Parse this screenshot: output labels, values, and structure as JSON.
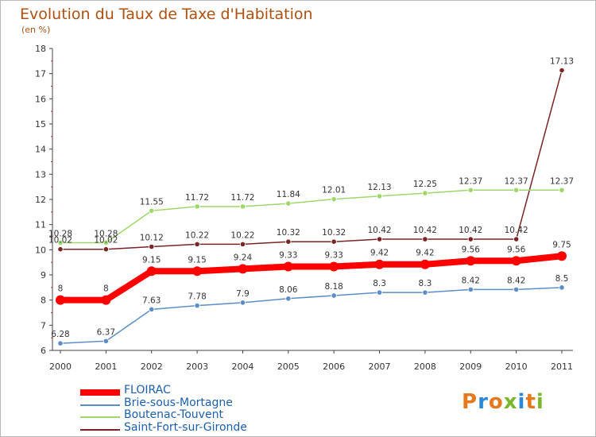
{
  "title": "Evolution du Taux de Taxe d'Habitation",
  "unit_label": "(en %)",
  "logo_text": "Proxiti",
  "logo_colors": [
    "#e8781e",
    "#2a8ad8",
    "#e8781e",
    "#7ab82a",
    "#2a8ad8",
    "#e8781e",
    "#7ab82a"
  ],
  "chart_data": {
    "type": "line",
    "x": [
      "2000",
      "2001",
      "2002",
      "2003",
      "2004",
      "2005",
      "2006",
      "2007",
      "2008",
      "2009",
      "2010",
      "2011"
    ],
    "ylim": [
      6,
      18
    ],
    "yticks": [
      "6",
      "7",
      "8",
      "9",
      "10",
      "11",
      "12",
      "13",
      "14",
      "15",
      "16",
      "17",
      "18"
    ],
    "grid": false,
    "legend_position": "bottom-left",
    "series": [
      {
        "name": "FLOIRAC",
        "color": "#ff0000",
        "values": [
          8,
          8,
          9.15,
          9.15,
          9.24,
          9.33,
          9.33,
          9.42,
          9.42,
          9.56,
          9.56,
          9.75
        ],
        "labels": [
          "8",
          "8",
          "9.15",
          "9.15",
          "9.24",
          "9.33",
          "9.33",
          "9.42",
          "9.42",
          "9.56",
          "9.56",
          "9.75"
        ]
      },
      {
        "name": "Brie-sous-Mortagne",
        "color": "#5b8ec8",
        "values": [
          6.28,
          6.37,
          7.63,
          7.78,
          7.9,
          8.06,
          8.18,
          8.3,
          8.3,
          8.42,
          8.42,
          8.5
        ],
        "labels": [
          "6.28",
          "6.37",
          "7.63",
          "7.78",
          "7.9",
          "8.06",
          "8.18",
          "8.3",
          "8.3",
          "8.42",
          "8.42",
          "8.5"
        ]
      },
      {
        "name": "Boutenac-Touvent",
        "color": "#9ed86a",
        "values": [
          10.28,
          10.28,
          11.55,
          11.72,
          11.72,
          11.84,
          12.01,
          12.13,
          12.25,
          12.37,
          12.37,
          12.37
        ],
        "labels": [
          "10.28",
          "10.28",
          "11.55",
          "11.72",
          "11.72",
          "11.84",
          "12.01",
          "12.13",
          "12.25",
          "12.37",
          "12.37",
          "12.37"
        ]
      },
      {
        "name": "Saint-Fort-sur-Gironde",
        "color": "#7a2424",
        "values": [
          10.02,
          10.02,
          10.12,
          10.22,
          10.22,
          10.32,
          10.32,
          10.42,
          10.42,
          10.42,
          10.42,
          17.13
        ],
        "labels": [
          "10.02",
          "10.02",
          "10.12",
          "10.22",
          "10.22",
          "10.32",
          "10.32",
          "10.42",
          "10.42",
          "10.42",
          "10.42",
          "17.13"
        ]
      }
    ]
  }
}
